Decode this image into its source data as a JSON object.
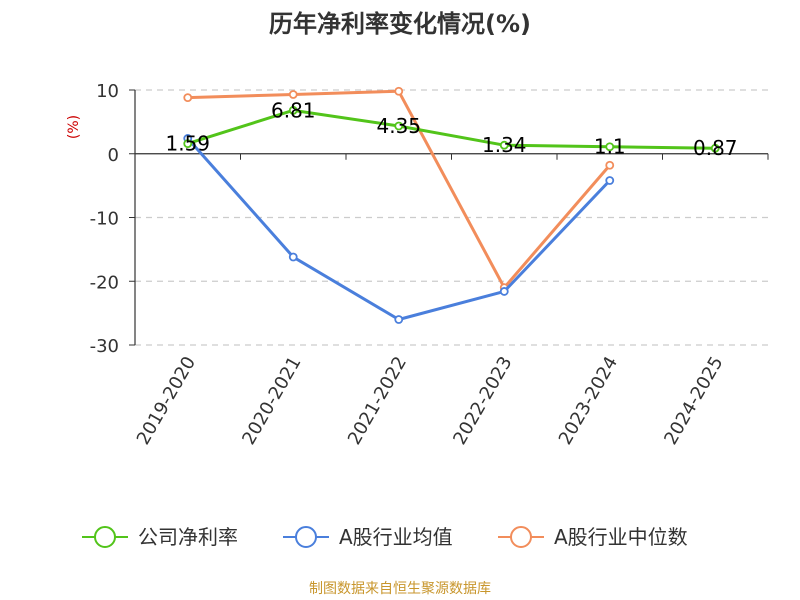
{
  "chart_data": {
    "type": "line",
    "title": "历年净利率变化情况(%)",
    "ylabel": "(%)",
    "ylim": [
      -30,
      10
    ],
    "yticks": [
      10,
      0,
      -10,
      -20,
      -30
    ],
    "grid": true,
    "legend_position": "bottom",
    "categories": [
      "2019-2020",
      "2020-2021",
      "2021-2022",
      "2022-2023",
      "2023-2024",
      "2024-2025"
    ],
    "series": [
      {
        "name": "公司净利率",
        "color": "#52c41a",
        "values": [
          1.59,
          6.81,
          4.35,
          1.34,
          1.1,
          0.87
        ],
        "labels": [
          "1.59",
          "6.81",
          "4.35",
          "1.34",
          "1.1",
          "0.87"
        ]
      },
      {
        "name": "A股行业均值",
        "color": "#4a7fdc",
        "values": [
          2.4,
          -16.2,
          -26.0,
          -21.6,
          -4.2,
          null
        ]
      },
      {
        "name": "A股行业中位数",
        "color": "#f28d5b",
        "values": [
          8.8,
          9.3,
          9.8,
          -21.0,
          -1.8,
          null
        ]
      }
    ]
  },
  "source": "制图数据来自恒生聚源数据库"
}
